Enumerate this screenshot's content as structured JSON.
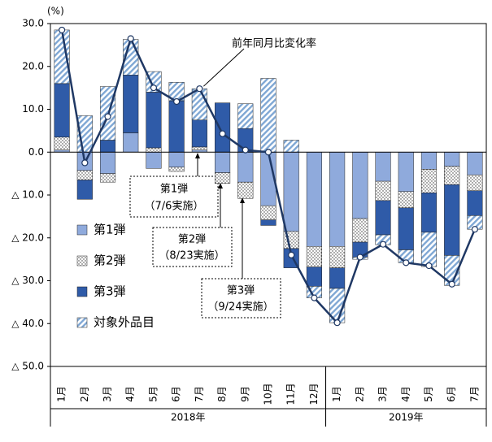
{
  "chart_data": {
    "type": "bar",
    "stacked": true,
    "unit_label": "(%)",
    "categories": [
      "1月",
      "2月",
      "3月",
      "4月",
      "5月",
      "6月",
      "7月",
      "8月",
      "9月",
      "10月",
      "11月",
      "12月",
      "1月",
      "2月",
      "3月",
      "4月",
      "5月",
      "6月",
      "7月"
    ],
    "groups": [
      {
        "label": "2018年",
        "start": 0,
        "end": 11
      },
      {
        "label": "2019年",
        "start": 12,
        "end": 18
      }
    ],
    "series": [
      {
        "name": "第1弾",
        "color": "#8faadc",
        "pattern": "solid",
        "values": [
          0.5,
          -4.3,
          -5,
          4.5,
          -3.8,
          -3.5,
          0.5,
          -4.8,
          -7,
          -12.5,
          -18.5,
          -22,
          -22,
          -15.5,
          -6.8,
          -9.2,
          -4,
          -3.3,
          -5.3
        ]
      },
      {
        "name": "第2弾",
        "color": "#ffffff",
        "pattern": "dots",
        "values": [
          3,
          -2.2,
          -2,
          0,
          1,
          -1,
          0.7,
          -2.5,
          -3.8,
          -3.3,
          -4,
          -4.8,
          -5,
          -5.5,
          -4.5,
          -3.8,
          -5.5,
          -4.3,
          -3.7
        ]
      },
      {
        "name": "第3弾",
        "color": "#2f5ba8",
        "pattern": "solid",
        "values": [
          12.5,
          -4.5,
          2.8,
          13.5,
          13,
          12,
          6.3,
          11.5,
          5.5,
          -1.3,
          -4.5,
          -4.5,
          -4.8,
          -3.5,
          -8,
          -9.8,
          -9.2,
          -16.5,
          -5.8
        ]
      },
      {
        "name": "対象外品目",
        "color": "#9dc3e6",
        "pattern": "hatch",
        "values": [
          12.5,
          8.5,
          12.5,
          8.3,
          4.8,
          4.3,
          7.3,
          0,
          5.8,
          17.2,
          2.8,
          -2.7,
          -8,
          -0.5,
          -2.3,
          -3,
          -8,
          -7,
          -3.2
        ]
      },
      {
        "name": "前年同月比変化率",
        "type": "line",
        "color": "#1f3864",
        "values": [
          28.5,
          -2.5,
          8.3,
          26.5,
          15,
          11.8,
          14.8,
          4.3,
          0.5,
          0,
          -24,
          -34,
          -39.8,
          -24.5,
          -21.5,
          -25.8,
          -26.5,
          -30.8,
          -18
        ]
      }
    ],
    "ylim": [
      -50,
      30
    ],
    "yticks": [
      {
        "value": 30,
        "label": "30.0"
      },
      {
        "value": 20,
        "label": "20.0"
      },
      {
        "value": 10,
        "label": "10.0"
      },
      {
        "value": 0,
        "label": "0.0"
      },
      {
        "value": -10,
        "label": "△ 10.0"
      },
      {
        "value": -20,
        "label": "△ 20.0"
      },
      {
        "value": -30,
        "label": "△ 30.0"
      },
      {
        "value": -40,
        "label": "△ 40.0"
      },
      {
        "value": -50,
        "label": "△ 50.0"
      }
    ],
    "annotations": [
      {
        "title": "第1弾",
        "note": "（7/6実施）"
      },
      {
        "title": "第2弾",
        "note": "（8/23実施）"
      },
      {
        "title": "第3弾",
        "note": "（9/24実施）"
      }
    ]
  }
}
